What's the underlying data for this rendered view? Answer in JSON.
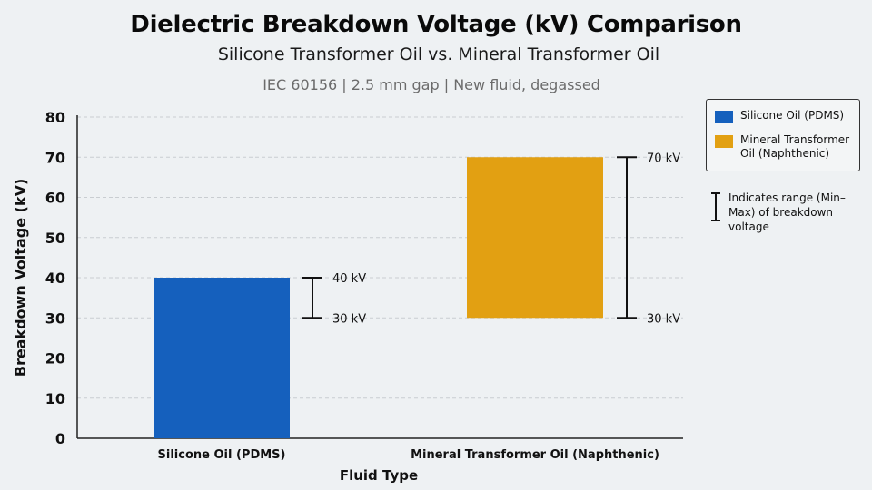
{
  "chart_data": {
    "type": "bar",
    "title": "Dielectric Breakdown Voltage (kV) Comparison",
    "subtitle": "Silicone Transformer Oil vs. Mineral Transformer Oil",
    "note": "IEC 60156 | 2.5 mm gap | New fluid, degassed",
    "xlabel": "Fluid Type",
    "ylabel": "Breakdown Voltage (kV)",
    "ylim": [
      0,
      80
    ],
    "yticks": [
      0,
      10,
      20,
      30,
      40,
      50,
      60,
      70,
      80
    ],
    "grid": true,
    "categories": [
      "Silicone Oil (PDMS)",
      "Mineral Transformer Oil (Naphthenic)"
    ],
    "series": [
      {
        "name": "Silicone Oil (PDMS)",
        "color": "#1560bd",
        "range": [
          30,
          40
        ],
        "min_label": "30 kV",
        "max_label": "40 kV"
      },
      {
        "name": "Mineral Transformer Oil (Naphthenic)",
        "color": "#e2a012",
        "range": [
          30,
          70
        ],
        "min_label": "30 kV",
        "max_label": "70 kV"
      }
    ],
    "legend": {
      "position": "top-right",
      "items": [
        {
          "label": "Silicone Oil (PDMS)",
          "color": "#1560bd"
        },
        {
          "label": "Mineral Transformer Oil (Naphthenic)",
          "color": "#e2a012"
        }
      ]
    },
    "range_note": "Indicates range (Min–Max) of breakdown voltage"
  }
}
